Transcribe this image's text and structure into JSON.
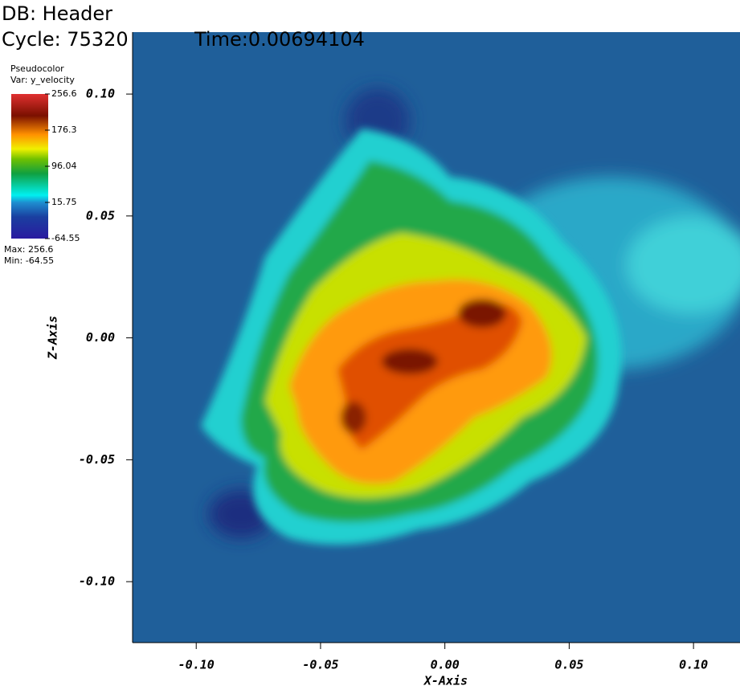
{
  "header": {
    "db": "DB: Header",
    "cycle": "Cycle: 75320",
    "time": "Time:0.00694104"
  },
  "chart_data": {
    "type": "pseudocolor",
    "x_label": "X-Axis",
    "y_label": "Z-Axis",
    "xlim": [
      -0.1256,
      0.1187
    ],
    "ylim": [
      -0.125,
      0.1254
    ],
    "xticks": [
      {
        "value": -0.1,
        "label": "-0.10"
      },
      -0.05,
      {
        "value": 0,
        "label": "0.00"
      },
      0.05,
      {
        "value": 0.1,
        "label": "0.10"
      }
    ],
    "yticks": [
      {
        "value": -0.1,
        "label": "-0.10"
      },
      -0.05,
      {
        "value": 0,
        "label": "0.00"
      },
      0.05,
      {
        "value": 0.1,
        "label": "0.10"
      }
    ],
    "legend": {
      "title": "Pseudocolor",
      "variable": "Var: y_velocity",
      "ticks": [
        256.6,
        176.3,
        96.04,
        15.75,
        -64.55
      ],
      "max_label": "Max: 256.6",
      "min_label": "Min: -64.55"
    }
  }
}
